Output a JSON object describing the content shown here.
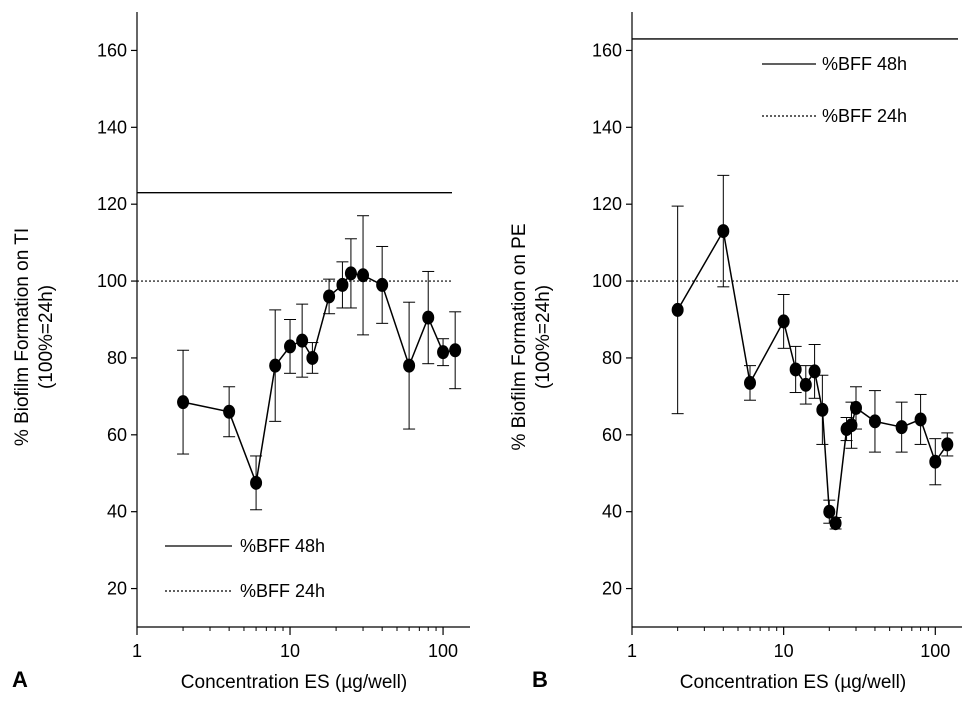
{
  "chart_data": [
    {
      "type": "line",
      "panel_label": "A",
      "xlabel": "Concentration ES (µg/well)",
      "ylabel_line1": "% Biofilm Formation on TI",
      "ylabel_line2": "(100%=24h)",
      "x_scale": "log",
      "xlim": [
        1,
        150
      ],
      "ylim": [
        10,
        170
      ],
      "x_ticks": [
        1,
        10,
        100
      ],
      "y_ticks": [
        20,
        40,
        60,
        80,
        100,
        120,
        140,
        160
      ],
      "grid": false,
      "legend_position": "bottom-left",
      "reference_lines": [
        {
          "name": "%BFF 48h",
          "value": 123,
          "style": "solid"
        },
        {
          "name": "%BFF 24h",
          "value": 100,
          "style": "dotted"
        }
      ],
      "series": [
        {
          "x": [
            2,
            4,
            6,
            8,
            10,
            12,
            14,
            18,
            22,
            25,
            30,
            40,
            60,
            80,
            100,
            120
          ],
          "y": [
            68.5,
            66,
            47.5,
            78,
            83,
            84.5,
            80,
            96,
            99,
            102,
            101.5,
            99,
            78,
            90.5,
            81.5,
            82
          ],
          "err": [
            13.5,
            6.5,
            7,
            14.5,
            7,
            9.5,
            4,
            4.5,
            6,
            9,
            15.5,
            10,
            16.5,
            12,
            3.5,
            10
          ]
        }
      ]
    },
    {
      "type": "line",
      "panel_label": "B",
      "xlabel": "Concentration ES (µg/well)",
      "ylabel_line1": "% Biofilm Formation on PE",
      "ylabel_line2": "(100%=24h)",
      "x_scale": "log",
      "xlim": [
        1,
        150
      ],
      "ylim": [
        10,
        170
      ],
      "x_ticks": [
        1,
        10,
        100
      ],
      "y_ticks": [
        20,
        40,
        60,
        80,
        100,
        120,
        140,
        160
      ],
      "grid": false,
      "legend_position": "top-right",
      "reference_lines": [
        {
          "name": "%BFF 48h",
          "value": 163,
          "style": "solid"
        },
        {
          "name": "%BFF 24h",
          "value": 100,
          "style": "dotted"
        }
      ],
      "series": [
        {
          "x": [
            2,
            4,
            6,
            10,
            12,
            14,
            16,
            18,
            20,
            22,
            26,
            28,
            30,
            40,
            60,
            80,
            100,
            120
          ],
          "y": [
            92.5,
            113,
            73.5,
            89.5,
            77,
            73,
            76.5,
            66.5,
            40,
            37,
            61.5,
            62.5,
            67,
            63.5,
            62,
            64,
            53,
            57.5
          ],
          "err": [
            27,
            14.5,
            4.5,
            7,
            6,
            5,
            7,
            9,
            3,
            1.5,
            3,
            6,
            5.5,
            8,
            6.5,
            6.5,
            6,
            3
          ]
        }
      ]
    }
  ]
}
